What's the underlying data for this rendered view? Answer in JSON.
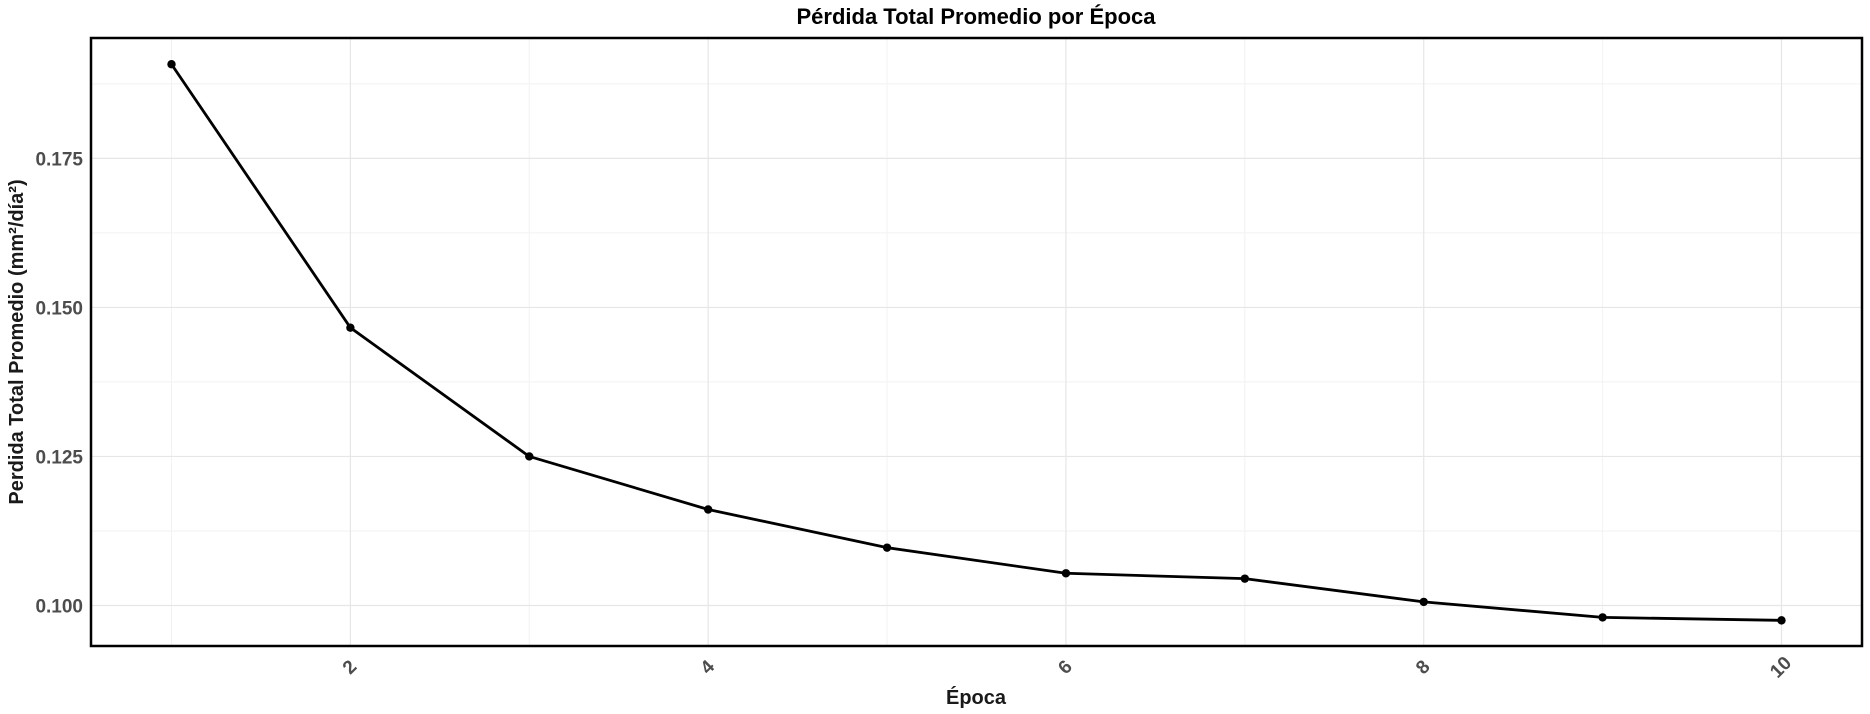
{
  "chart_data": {
    "type": "line",
    "title": "Pérdida Total Promedio por Época",
    "xlabel": "Época",
    "ylabel": "Perdida Total Promedio (mm²/día²)",
    "x": [
      1,
      2,
      3,
      4,
      5,
      6,
      7,
      8,
      9,
      10
    ],
    "series": [
      {
        "values": [
          0.1908,
          0.1466,
          0.125,
          0.1161,
          0.1097,
          0.1054,
          0.1045,
          0.1006,
          0.098,
          0.0975
        ]
      }
    ],
    "xlim": [
      0.55,
      10.45
    ],
    "ylim": [
      0.0932,
      0.1952
    ],
    "x_ticks": [
      2,
      4,
      6,
      8,
      10
    ],
    "x_tick_labels": [
      "2",
      "4",
      "6",
      "8",
      "10"
    ],
    "y_ticks": [
      0.1,
      0.125,
      0.15,
      0.175
    ],
    "y_tick_labels": [
      "0.100",
      "0.125",
      "0.150",
      "0.175"
    ],
    "x_minor_ticks": [
      1,
      3,
      5,
      7,
      9
    ],
    "y_minor_ticks": [
      0.1125,
      0.1375,
      0.1625,
      0.1875
    ],
    "grid": true,
    "line_color": "#000000"
  }
}
